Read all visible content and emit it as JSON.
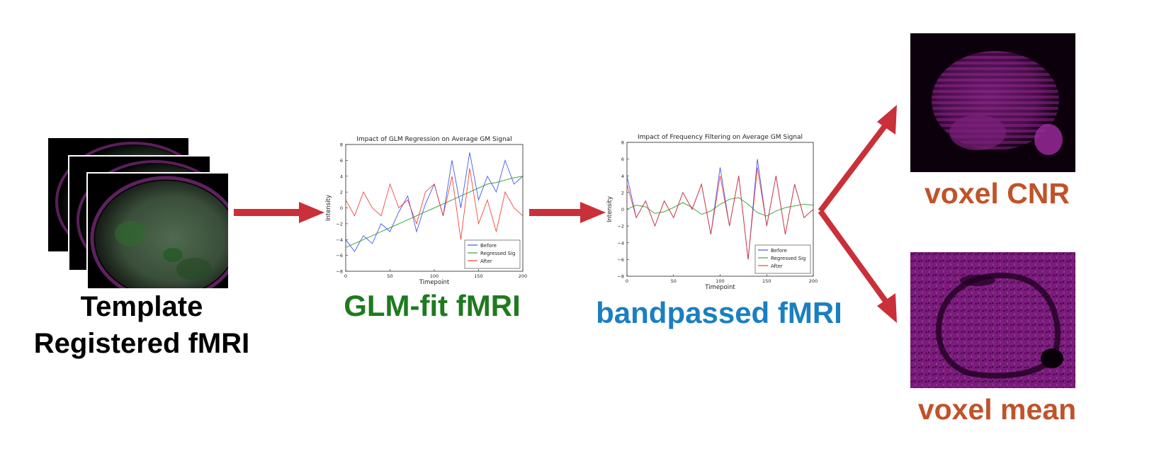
{
  "colors": {
    "arrow": "#c9303a",
    "green_label": "#1e7a1e",
    "blue_label": "#1a7fc1",
    "orange_label": "#c0532a",
    "series_before": "#3344ee",
    "series_regressed": "#2a9a2a",
    "series_after": "#ee3322",
    "magenta": "#8a1d8a"
  },
  "stage1": {
    "label_line1": "Template",
    "label_line2": "Registered fMRI",
    "image": "brain-sagittal-stack"
  },
  "stage2": {
    "label": "GLM-fit fMRI"
  },
  "stage3": {
    "label": "bandpassed fMRI"
  },
  "outputs": {
    "cnr_label": "voxel CNR",
    "mean_label": "voxel mean",
    "cnr_image": "brain-magenta-cnr",
    "mean_image": "brain-magenta-mean"
  },
  "chart_data": [
    {
      "type": "line",
      "title": "Impact of GLM Regression on Average GM Signal",
      "xlabel": "Timepoint",
      "ylabel": "Intensity",
      "xlim": [
        0,
        200
      ],
      "ylim": [
        -8,
        8
      ],
      "xticks": [
        "0",
        "50",
        "100",
        "150",
        "200"
      ],
      "yticks": [
        "8",
        "6",
        "4",
        "2",
        "0",
        "−2",
        "−4",
        "−6",
        "−8"
      ],
      "legend_position": "bottom-right",
      "legend": [
        "Before",
        "Regressed Sig",
        "After"
      ],
      "x": [
        0,
        10,
        20,
        30,
        40,
        50,
        60,
        70,
        80,
        90,
        100,
        110,
        120,
        130,
        140,
        150,
        160,
        170,
        180,
        190,
        200
      ],
      "series": [
        {
          "name": "Before",
          "values": [
            -4,
            -5.5,
            -3.5,
            -4.5,
            -2,
            -3,
            -0.5,
            1.5,
            -3,
            0.5,
            3,
            -1,
            6,
            0,
            7,
            1,
            4,
            2,
            6,
            3,
            4
          ]
        },
        {
          "name": "Regressed Sig",
          "values": [
            -5,
            -4.5,
            -4,
            -3.5,
            -3,
            -2.5,
            -2,
            -1.5,
            -1,
            -0.5,
            0,
            0.5,
            1,
            1.5,
            2,
            2.5,
            3,
            3.2,
            3.5,
            3.8,
            4
          ]
        },
        {
          "name": "After",
          "values": [
            1,
            -1,
            2,
            0,
            -1,
            3,
            0,
            1,
            -2,
            2,
            3,
            -1,
            4,
            -4,
            5,
            -2,
            1,
            -3,
            2,
            0,
            -1
          ]
        }
      ]
    },
    {
      "type": "line",
      "title": "Impact of Frequency Filtering on Average GM Signal",
      "xlabel": "Timepoint",
      "ylabel": "Intensity",
      "xlim": [
        0,
        200
      ],
      "ylim": [
        -8,
        8
      ],
      "xticks": [
        "0",
        "50",
        "100",
        "150",
        "200"
      ],
      "yticks": [
        "8",
        "6",
        "4",
        "2",
        "0",
        "−2",
        "−4",
        "−6",
        "−8"
      ],
      "legend_position": "bottom-right",
      "legend": [
        "Before",
        "Regressed Sig",
        "After"
      ],
      "x": [
        0,
        10,
        20,
        30,
        40,
        50,
        60,
        70,
        80,
        90,
        100,
        110,
        120,
        130,
        140,
        150,
        160,
        170,
        180,
        190,
        200
      ],
      "series": [
        {
          "name": "Before",
          "values": [
            4,
            -1,
            1,
            -2,
            1,
            -1,
            2,
            0,
            3,
            -3,
            5,
            -2,
            4,
            -6,
            6,
            -2,
            4,
            -3,
            3,
            -1,
            0
          ]
        },
        {
          "name": "Regressed Sig",
          "values": [
            0,
            0.5,
            0.3,
            -0.5,
            -0.3,
            0.2,
            0.8,
            0.2,
            -0.6,
            -0.2,
            0.6,
            1.2,
            1.4,
            0.6,
            -0.4,
            -0.8,
            -0.2,
            0.2,
            0.4,
            0.6,
            0.5
          ]
        },
        {
          "name": "After",
          "values": [
            3,
            -1,
            1,
            -2,
            1,
            -1,
            2,
            0,
            3,
            -3,
            4,
            -2,
            4,
            -6,
            5,
            -2,
            4,
            -3,
            3,
            -1,
            0
          ]
        }
      ]
    }
  ]
}
